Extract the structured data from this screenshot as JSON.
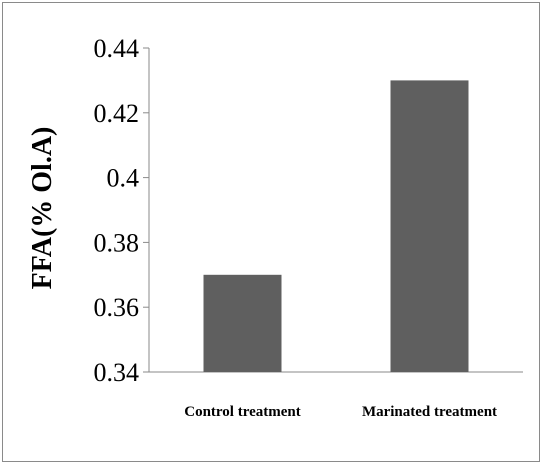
{
  "chart_data": {
    "type": "bar",
    "categories": [
      "Control treatment",
      "Marinated treatment"
    ],
    "values": [
      0.37,
      0.43
    ],
    "title": "",
    "xlabel": "",
    "ylabel": "FFA(% Ol.A)",
    "ylim": [
      0.34,
      0.44
    ],
    "yticks": [
      "0.34",
      "0.36",
      "0.38",
      "0.4",
      "0.42",
      "0.44"
    ],
    "grid": false,
    "colors": {
      "bar": "#5f5f5f",
      "axis": "#8a8a8a"
    }
  }
}
